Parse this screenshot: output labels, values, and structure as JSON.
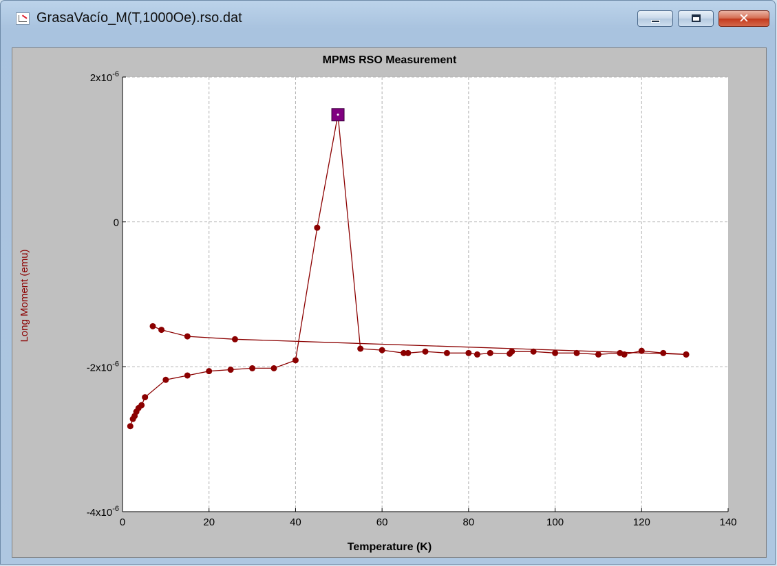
{
  "window": {
    "title": "GrasaVacío_M(T,1000Oe).rso.dat",
    "icon": "chart-document-icon",
    "controls": [
      "minimize-icon",
      "maximize-icon",
      "close-icon"
    ]
  },
  "colors": {
    "series": "#8b0000",
    "highlight": "#800080",
    "plot_bg": "#ffffff",
    "frame_bg": "#c0c0c0",
    "ylabel": "#8b0000"
  },
  "chart_data": {
    "type": "line",
    "title": "MPMS RSO Measurement",
    "xlabel": "Temperature (K)",
    "ylabel": "Long Moment (emu)",
    "xlim": [
      0,
      140
    ],
    "ylim": [
      -4e-06,
      2e-06
    ],
    "xticks": [
      0,
      20,
      40,
      60,
      80,
      100,
      120,
      140
    ],
    "yticks": [
      {
        "value": 2e-06,
        "mant": "2x10",
        "exp": "-6"
      },
      {
        "value": 0,
        "mant": "0",
        "exp": ""
      },
      {
        "value": -2e-06,
        "mant": "-2x10",
        "exp": "-6"
      },
      {
        "value": -4e-06,
        "mant": "-4x10",
        "exp": "-6"
      }
    ],
    "grid": true,
    "highlighted_point": {
      "x": 49.8,
      "y": 1.48e-06
    },
    "series": [
      {
        "points": [
          [
            1.8,
            -2.82e-06
          ],
          [
            2.4,
            -2.72e-06
          ],
          [
            2.8,
            -2.68e-06
          ],
          [
            3.2,
            -2.62e-06
          ],
          [
            3.7,
            -2.57e-06
          ],
          [
            4.4,
            -2.53e-06
          ],
          [
            5.2,
            -2.42e-06
          ],
          [
            10,
            -2.18e-06
          ],
          [
            15,
            -2.12e-06
          ],
          [
            20,
            -2.06e-06
          ],
          [
            25,
            -2.04e-06
          ],
          [
            30,
            -2.02e-06
          ],
          [
            35,
            -2.02e-06
          ],
          [
            40,
            -1.91e-06
          ],
          [
            45,
            -8e-08
          ],
          [
            49.8,
            1.48e-06
          ],
          [
            55,
            -1.75e-06
          ],
          [
            60,
            -1.77e-06
          ],
          [
            65,
            -1.81e-06
          ],
          [
            66,
            -1.81e-06
          ],
          [
            70,
            -1.79e-06
          ],
          [
            75,
            -1.81e-06
          ],
          [
            80,
            -1.81e-06
          ],
          [
            82,
            -1.83e-06
          ],
          [
            85,
            -1.81e-06
          ],
          [
            89.5,
            -1.82e-06
          ],
          [
            90,
            -1.79e-06
          ],
          [
            95,
            -1.79e-06
          ],
          [
            100,
            -1.81e-06
          ],
          [
            105,
            -1.81e-06
          ],
          [
            110,
            -1.83e-06
          ],
          [
            115,
            -1.81e-06
          ],
          [
            116,
            -1.83e-06
          ],
          [
            120,
            -1.78e-06
          ],
          [
            125,
            -1.81e-06
          ],
          [
            130.3,
            -1.83e-06
          ]
        ]
      },
      {
        "points": [
          [
            7,
            -1.44e-06
          ],
          [
            9,
            -1.49e-06
          ],
          [
            15,
            -1.58e-06
          ],
          [
            26,
            -1.62e-06
          ],
          [
            130.3,
            -1.83e-06
          ]
        ]
      }
    ]
  }
}
